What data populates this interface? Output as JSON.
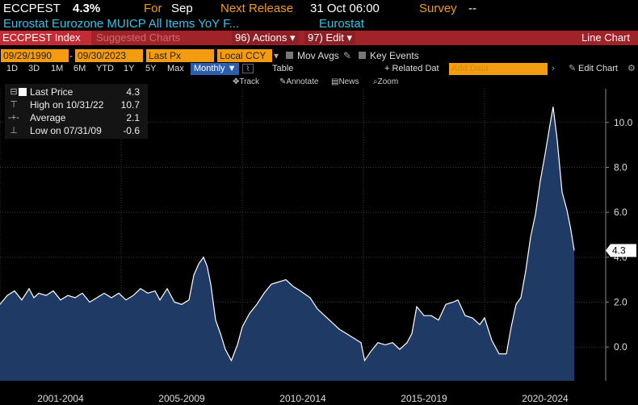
{
  "header": {
    "ticker": "ECCPEST",
    "value": "4.3%",
    "for_label": "For",
    "for_value": "Sep",
    "next_release_label": "Next Release",
    "next_release_value": "31 Oct 06:00",
    "survey_label": "Survey",
    "survey_value": "--",
    "description": "Eurostat Eurozone MUICP All Items YoY F...",
    "source": "Eurostat"
  },
  "menubar": {
    "index": "ECCPEST Index",
    "suggested": "Suggested Charts",
    "actions_num": "96)",
    "actions": "Actions",
    "edit_num": "97)",
    "edit": "Edit",
    "chart_type": "Line Chart"
  },
  "controls": {
    "start_date": "09/29/1990",
    "end_date": "09/30/2023",
    "field": "Last Px",
    "currency": "Local CCY",
    "mov_avgs": "Mov Avgs",
    "key_events": "Key Events"
  },
  "periods": [
    "1D",
    "3D",
    "1M",
    "6M",
    "YTD",
    "1Y",
    "5Y",
    "Max"
  ],
  "frequency": "Monthly",
  "table_label": "Table",
  "related_data": "+ Related Dat",
  "add_data_placeholder": "Add Data",
  "edit_chart": "Edit Chart",
  "toolbar": [
    "Track",
    "Annotate",
    "News",
    "Zoom"
  ],
  "legend": {
    "last_price_label": "Last Price",
    "last_price_value": "4.3",
    "high_label": "High on 10/31/22",
    "high_value": "10.7",
    "average_label": "Average",
    "average_value": "2.1",
    "low_label": "Low on 07/31/09",
    "low_value": "-0.6"
  },
  "colors": {
    "accent": "#f39c12",
    "header_bar": "#a0232a",
    "series_line": "#ffffff",
    "series_fill": "#1f3a64"
  },
  "chart_data": {
    "type": "area",
    "ylim": [
      -1.5,
      11.5
    ],
    "yticks": [
      0.0,
      2.0,
      4.0,
      6.0,
      8.0,
      10.0
    ],
    "ytick_labels": [
      "0.0",
      "2.0",
      "4.0",
      "6.0",
      "8.0",
      "10.0"
    ],
    "last_value_label": "4.3",
    "x_period_labels": [
      "2001-2004",
      "2005-2009",
      "2010-2014",
      "2015-2019",
      "2020-2024"
    ],
    "x_boundaries": [
      2000.0,
      2005.0,
      2010.0,
      2015.0,
      2020.0,
      2025.0
    ],
    "xlim": [
      2000.0,
      2025.0
    ],
    "series": [
      {
        "x": [
          2000.0,
          2000.3,
          2000.6,
          2000.9,
          2001.2,
          2001.4,
          2001.6,
          2001.9,
          2002.2,
          2002.5,
          2002.8,
          2003.1,
          2003.4,
          2003.7,
          2004.0,
          2004.3,
          2004.6,
          2004.9,
          2005.2,
          2005.5,
          2005.8,
          2006.1,
          2006.4,
          2006.6,
          2006.9,
          2007.2,
          2007.5,
          2007.8,
          2008.0,
          2008.2,
          2008.4,
          2008.55,
          2008.7,
          2008.9,
          2009.1,
          2009.3,
          2009.55,
          2009.8,
          2010.0,
          2010.3,
          2010.6,
          2010.9,
          2011.2,
          2011.5,
          2011.8,
          2012.1,
          2012.4,
          2012.8,
          2013.1,
          2013.4,
          2013.7,
          2014.0,
          2014.3,
          2014.6,
          2014.9,
          2015.05,
          2015.3,
          2015.6,
          2015.9,
          2016.2,
          2016.5,
          2016.8,
          2017.0,
          2017.2,
          2017.5,
          2017.8,
          2018.1,
          2018.4,
          2018.7,
          2018.9,
          2019.2,
          2019.5,
          2019.8,
          2020.0,
          2020.3,
          2020.6,
          2020.9,
          2021.1,
          2021.3,
          2021.5,
          2021.7,
          2021.9,
          2022.1,
          2022.3,
          2022.5,
          2022.7,
          2022.83,
          2023.0,
          2023.2,
          2023.4,
          2023.55,
          2023.7
        ],
        "y": [
          1.9,
          2.3,
          2.5,
          2.1,
          2.6,
          2.2,
          2.4,
          2.3,
          2.5,
          2.1,
          2.3,
          2.2,
          2.4,
          2.0,
          2.2,
          2.4,
          2.2,
          2.4,
          2.1,
          2.3,
          2.6,
          2.4,
          2.5,
          2.1,
          2.6,
          2.0,
          1.9,
          2.1,
          3.2,
          3.7,
          4.0,
          3.6,
          2.8,
          1.2,
          0.6,
          -0.1,
          -0.6,
          0.1,
          0.9,
          1.5,
          1.9,
          2.4,
          2.8,
          2.9,
          3.0,
          2.7,
          2.5,
          2.2,
          1.7,
          1.4,
          1.1,
          0.8,
          0.6,
          0.4,
          0.2,
          -0.6,
          -0.2,
          0.2,
          0.1,
          0.2,
          -0.1,
          0.2,
          0.6,
          1.8,
          1.4,
          1.4,
          1.2,
          1.9,
          2.0,
          2.1,
          1.4,
          1.3,
          1.0,
          1.3,
          0.3,
          -0.3,
          -0.3,
          0.9,
          1.9,
          2.2,
          3.4,
          4.9,
          5.9,
          7.4,
          8.6,
          9.9,
          10.7,
          9.2,
          6.9,
          6.1,
          5.3,
          4.3
        ]
      }
    ]
  }
}
